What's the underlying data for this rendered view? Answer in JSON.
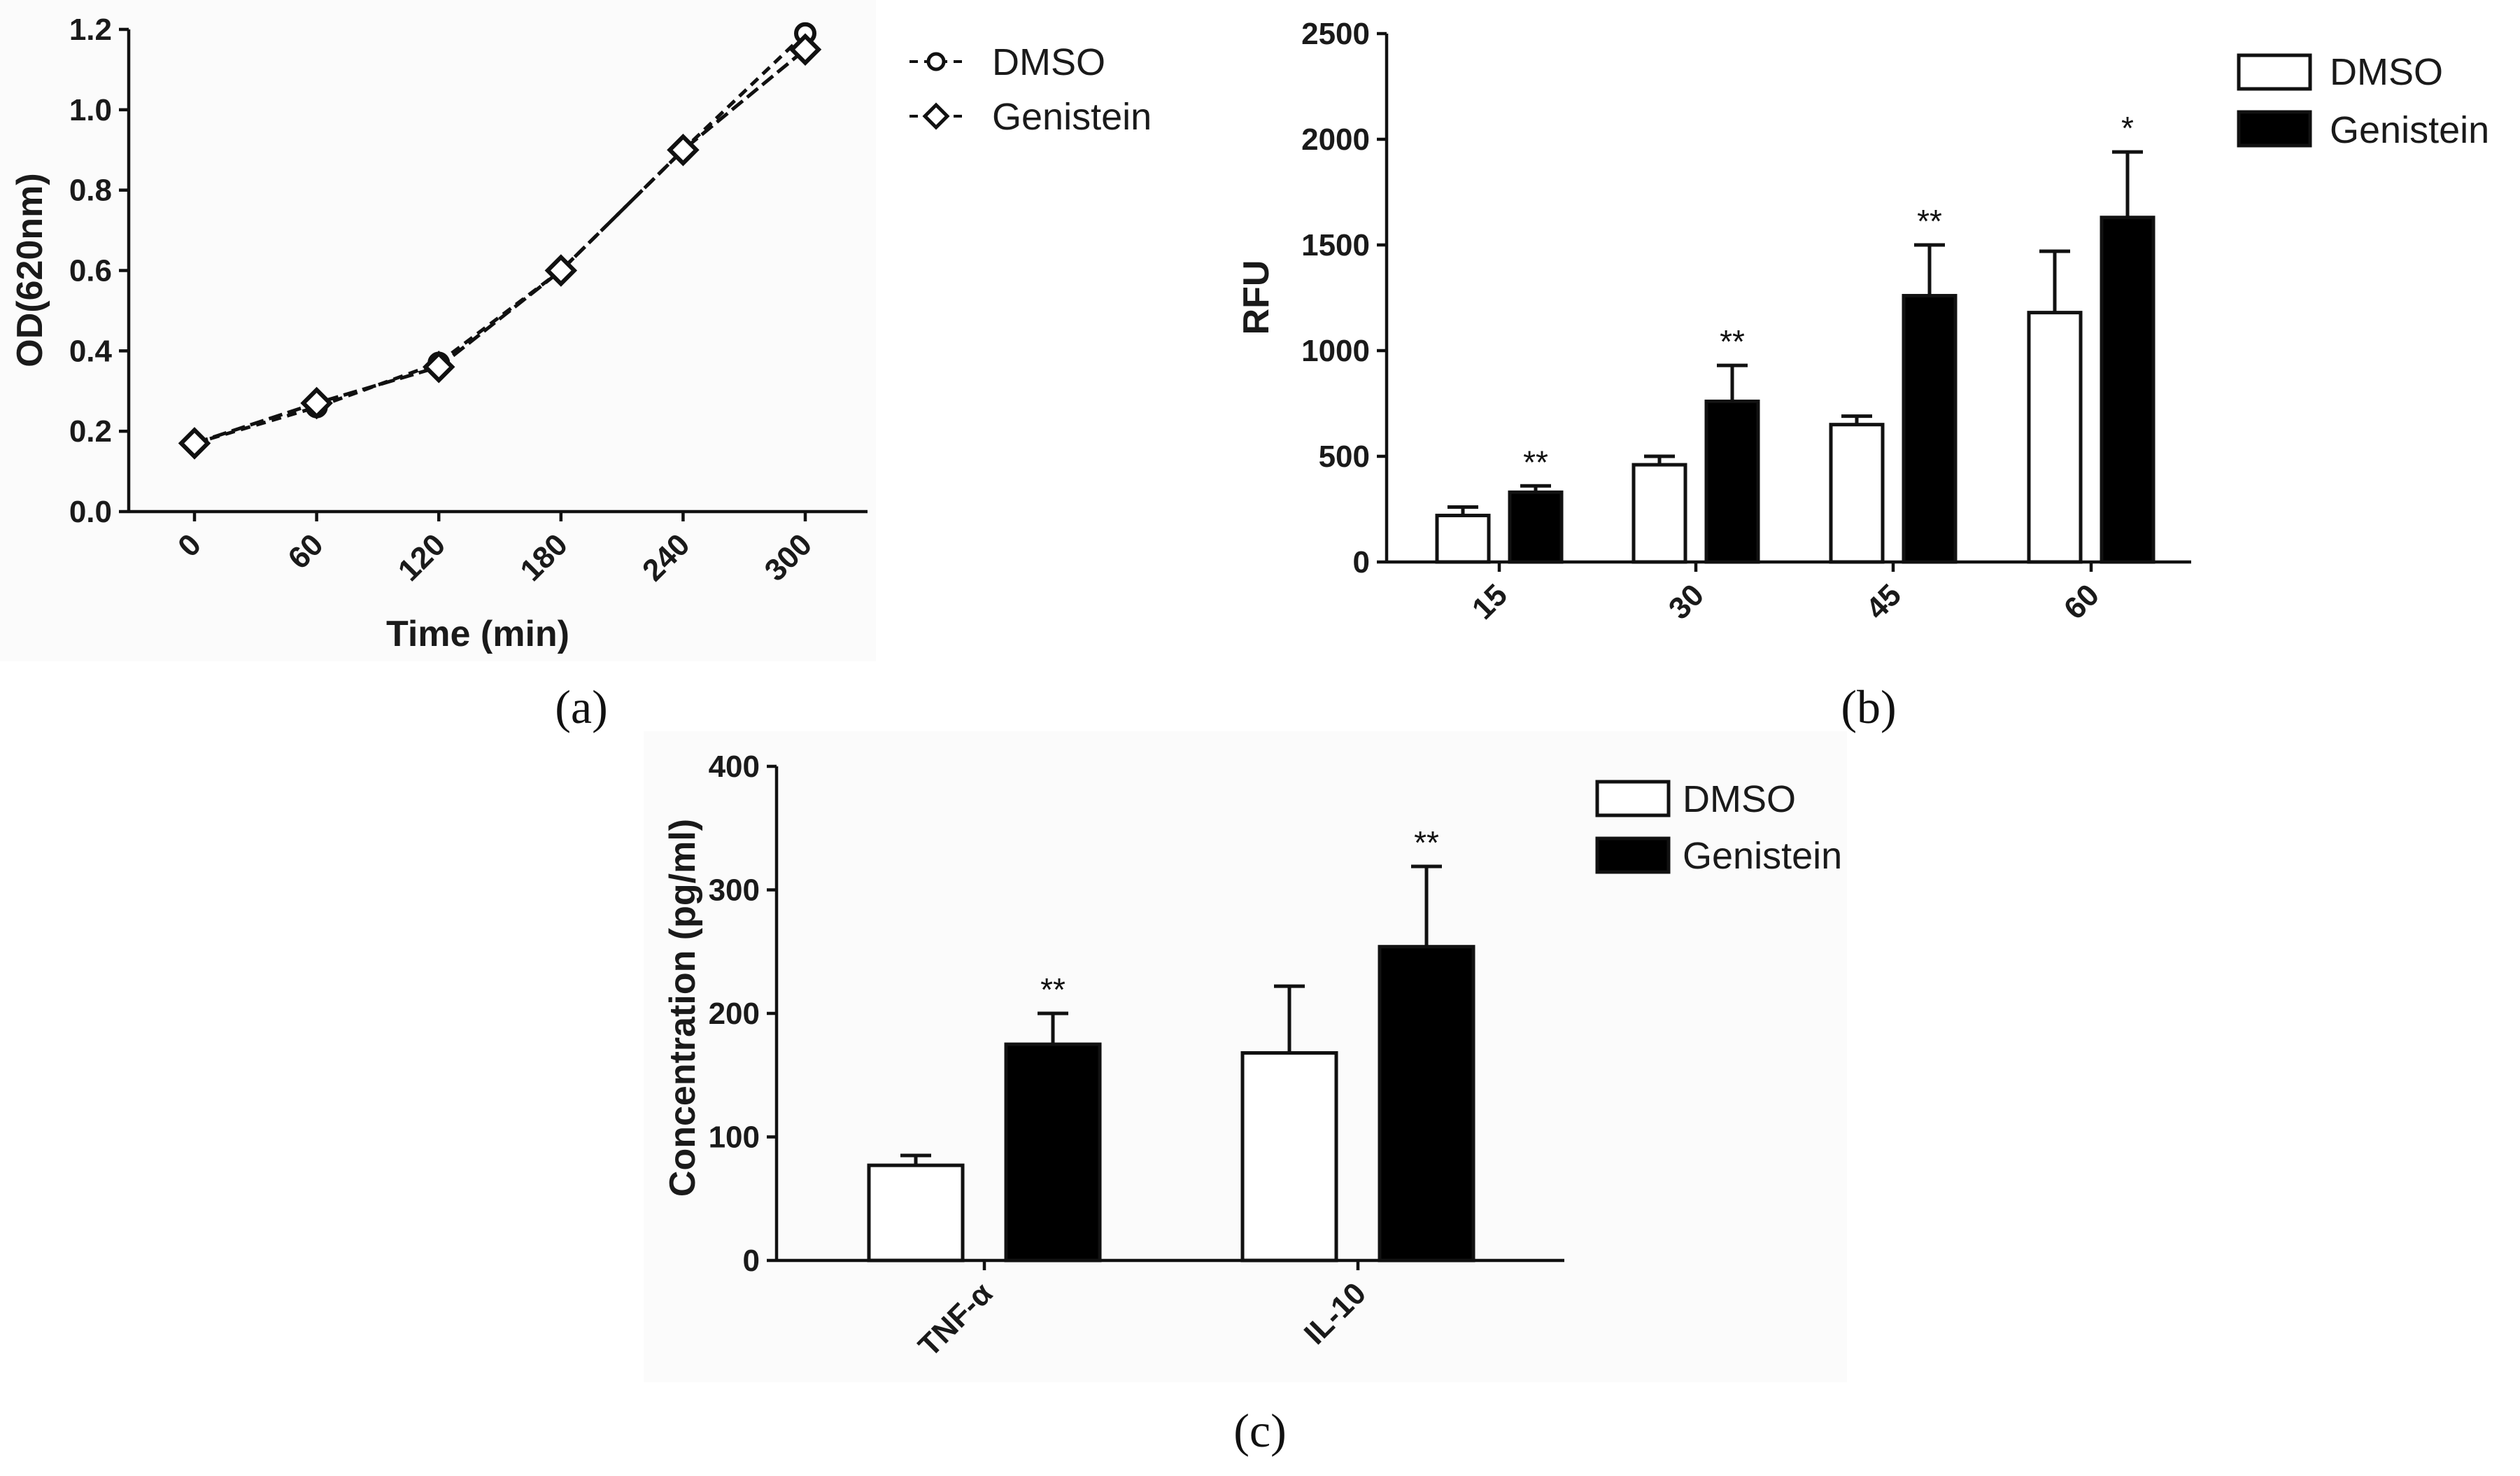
{
  "chart_data": [
    {
      "panel": "(a)",
      "type": "line",
      "xlabel": "Time (min)",
      "ylabel": "OD(620nm)",
      "x": [
        0,
        60,
        120,
        180,
        240,
        300
      ],
      "xticks": [
        "0",
        "60",
        "120",
        "180",
        "240",
        "300"
      ],
      "yticks": [
        "0.0",
        "0.2",
        "0.4",
        "0.6",
        "0.8",
        "1.0",
        "1.2"
      ],
      "ylim": [
        0,
        1.2
      ],
      "series": [
        {
          "name": "DMSO",
          "marker": "circle",
          "values": [
            0.17,
            0.26,
            0.37,
            0.6,
            0.9,
            1.19
          ]
        },
        {
          "name": "Genistein",
          "marker": "diamond",
          "values": [
            0.17,
            0.27,
            0.36,
            0.6,
            0.9,
            1.15
          ]
        }
      ],
      "legend": "top-right"
    },
    {
      "panel": "(b)",
      "type": "bar",
      "xlabel": "",
      "ylabel": "RFU",
      "categories": [
        "15",
        "30",
        "45",
        "60"
      ],
      "yticks": [
        "0",
        "500",
        "1000",
        "1500",
        "2000",
        "2500"
      ],
      "ylim": [
        0,
        2500
      ],
      "series": [
        {
          "name": "DMSO",
          "fill": "#ffffff",
          "values": [
            220,
            460,
            650,
            1180
          ],
          "errors": [
            40,
            40,
            40,
            290
          ]
        },
        {
          "name": "Genistein",
          "fill": "#000000",
          "values": [
            330,
            760,
            1260,
            1630
          ],
          "errors": [
            30,
            170,
            240,
            310
          ],
          "significance": [
            "**",
            "**",
            "**",
            "*"
          ]
        }
      ],
      "legend": "top-right"
    },
    {
      "panel": "(c)",
      "type": "bar",
      "xlabel": "",
      "ylabel": "Concentration (pg/ml)",
      "categories": [
        "TNF-α",
        "IL-10"
      ],
      "yticks": [
        "0",
        "100",
        "200",
        "300",
        "400"
      ],
      "ylim": [
        0,
        400
      ],
      "series": [
        {
          "name": "DMSO",
          "fill": "#ffffff",
          "values": [
            77,
            168
          ],
          "errors": [
            8,
            54
          ]
        },
        {
          "name": "Genistein",
          "fill": "#000000",
          "values": [
            175,
            254
          ],
          "errors": [
            25,
            65
          ],
          "significance": [
            "**",
            "**"
          ]
        }
      ],
      "legend": "top-right"
    }
  ]
}
